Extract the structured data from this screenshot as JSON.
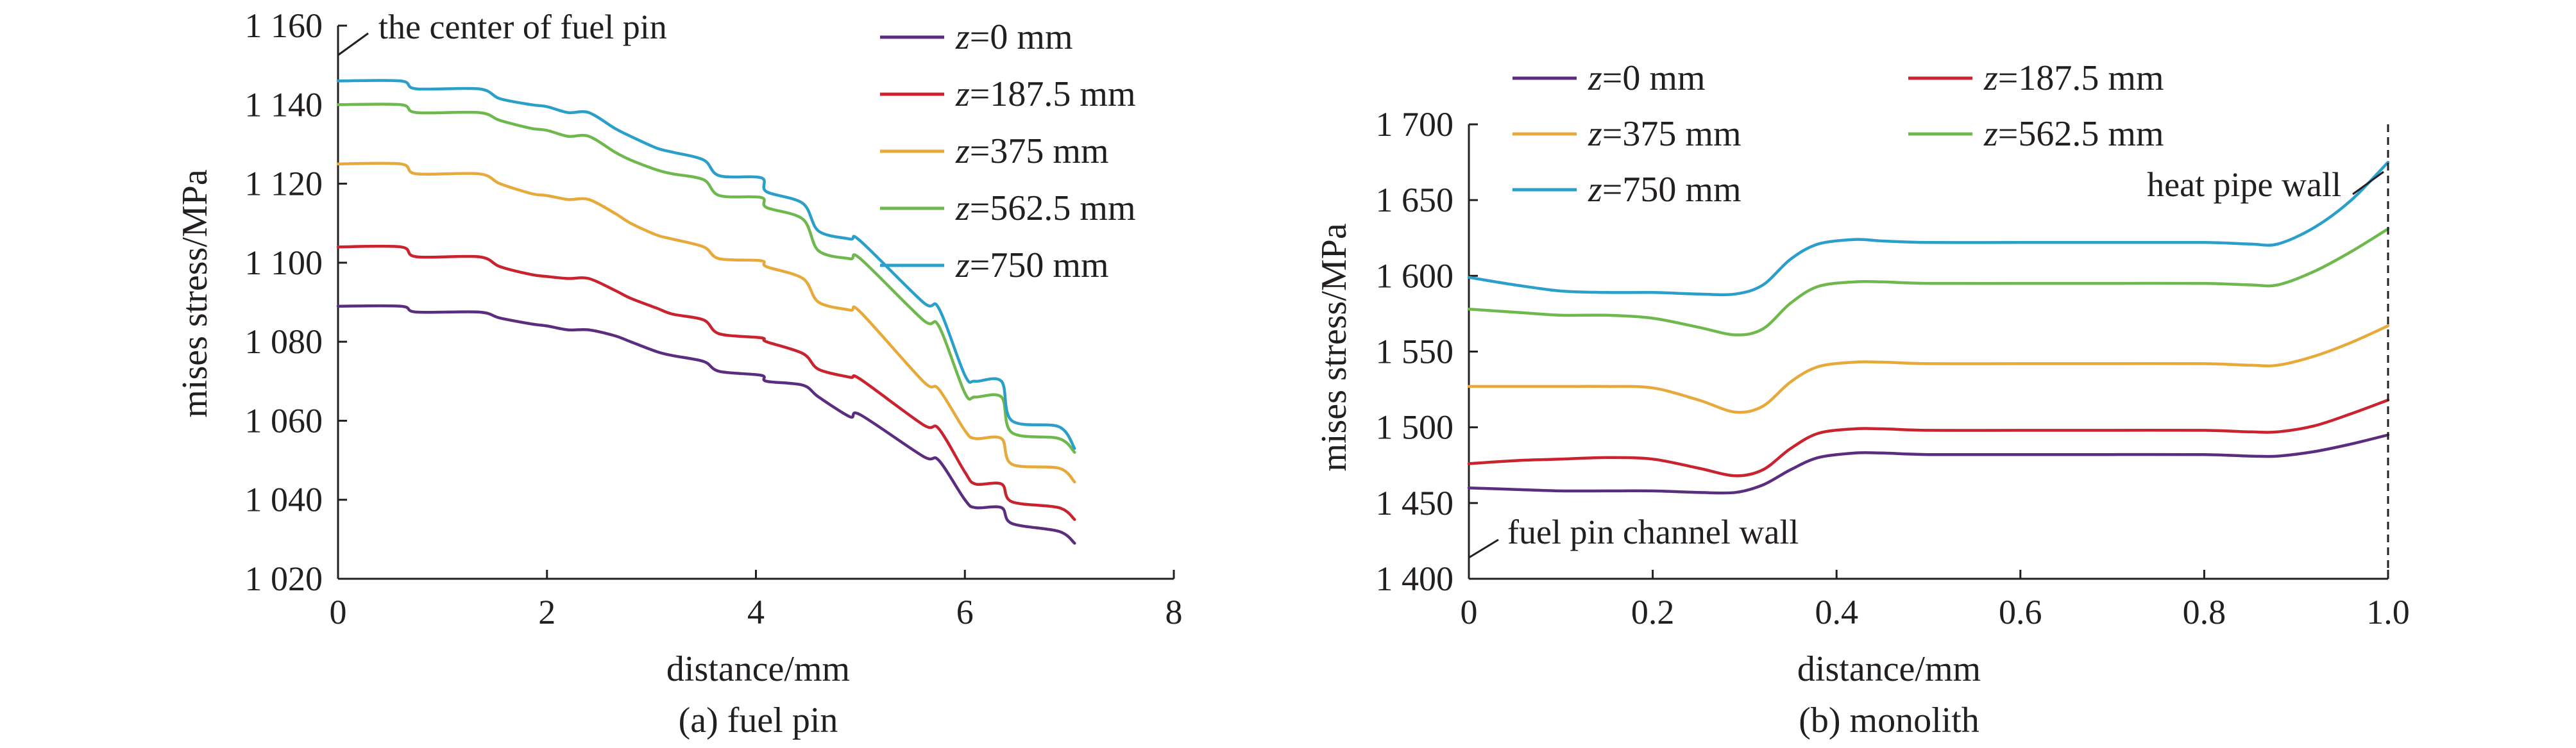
{
  "chart_data": [
    {
      "type": "line",
      "caption": "(a) fuel pin",
      "xlabel": "distance/mm",
      "ylabel": "mises stress/MPa",
      "xlim": [
        0,
        8
      ],
      "ylim": [
        1020,
        1160
      ],
      "xticks": [
        0,
        2,
        4,
        6,
        8
      ],
      "xtick_labels": [
        "0",
        "2",
        "4",
        "6",
        "8"
      ],
      "yticks": [
        1020,
        1040,
        1060,
        1080,
        1100,
        1120,
        1140,
        1160
      ],
      "ytick_labels": [
        "1 020",
        "1 040",
        "1 060",
        "1 080",
        "1 100",
        "1 120",
        "1 140",
        "1 160"
      ],
      "legend_position": "top-right",
      "annotations": [
        {
          "text": "the center of fuel pin",
          "x": 0,
          "y": 1152
        }
      ],
      "series": [
        {
          "name": "z=0 mm",
          "name_italic": "z",
          "name_rest": "=0 mm",
          "color": "#5b2d7f",
          "x": [
            0,
            0.6,
            0.75,
            1.35,
            1.55,
            1.85,
            2.0,
            2.2,
            2.4,
            2.65,
            2.8,
            3.05,
            3.2,
            3.5,
            3.65,
            4.05,
            4.1,
            4.45,
            4.6,
            4.9,
            5.0,
            5.6,
            5.75,
            6.0,
            6.1,
            6.35,
            6.45,
            6.9,
            7.05
          ],
          "y": [
            1089,
            1089,
            1087.5,
            1087.5,
            1086,
            1084.5,
            1084,
            1083,
            1083,
            1081.5,
            1080,
            1077.5,
            1076.5,
            1075,
            1072.5,
            1071.5,
            1070,
            1069,
            1066,
            1061,
            1061.5,
            1051,
            1050,
            1040,
            1038,
            1038,
            1034,
            1032,
            1029
          ]
        },
        {
          "name": "z=187.5 mm",
          "name_italic": "z",
          "name_rest": "=187.5 mm",
          "color": "#c8232f",
          "x": [
            0,
            0.6,
            0.75,
            1.35,
            1.55,
            1.85,
            2.0,
            2.2,
            2.4,
            2.65,
            2.8,
            3.05,
            3.2,
            3.5,
            3.65,
            4.05,
            4.1,
            4.45,
            4.6,
            4.9,
            5.0,
            5.6,
            5.75,
            6.0,
            6.1,
            6.35,
            6.45,
            6.9,
            7.05
          ],
          "y": [
            1104,
            1104,
            1101.5,
            1101.5,
            1099,
            1097,
            1096.5,
            1096,
            1096,
            1093,
            1091,
            1088.5,
            1087,
            1085.5,
            1082,
            1081,
            1080,
            1077,
            1073,
            1071,
            1070.5,
            1059,
            1058,
            1047,
            1044,
            1044,
            1039.5,
            1038,
            1035
          ]
        },
        {
          "name": "z=375 mm",
          "name_italic": "z",
          "name_rest": "=375 mm",
          "color": "#e6a93a",
          "x": [
            0,
            0.6,
            0.75,
            1.35,
            1.55,
            1.85,
            2.0,
            2.2,
            2.4,
            2.65,
            2.8,
            3.05,
            3.2,
            3.5,
            3.65,
            4.05,
            4.1,
            4.45,
            4.6,
            4.9,
            5.0,
            5.6,
            5.75,
            6.0,
            6.1,
            6.35,
            6.45,
            6.9,
            7.05
          ],
          "y": [
            1125,
            1125,
            1122.5,
            1122.5,
            1120,
            1117.5,
            1117,
            1116,
            1116,
            1112.5,
            1110,
            1107,
            1106,
            1104,
            1101,
            1100.5,
            1099,
            1096,
            1090,
            1088,
            1087.5,
            1070,
            1068,
            1057.5,
            1055.5,
            1055.5,
            1049,
            1048,
            1044.5
          ]
        },
        {
          "name": "z=562.5 mm",
          "name_italic": "z",
          "name_rest": "=562.5 mm",
          "color": "#6fb84e",
          "x": [
            0,
            0.6,
            0.75,
            1.35,
            1.55,
            1.85,
            2.0,
            2.2,
            2.4,
            2.65,
            2.8,
            3.05,
            3.2,
            3.5,
            3.65,
            4.05,
            4.1,
            4.45,
            4.6,
            4.9,
            5.0,
            5.6,
            5.75,
            6.0,
            6.1,
            6.35,
            6.45,
            6.9,
            7.05
          ],
          "y": [
            1140,
            1140,
            1138,
            1138,
            1136,
            1134,
            1133.5,
            1132,
            1132,
            1128,
            1126,
            1123.5,
            1122.5,
            1121,
            1117,
            1116.5,
            1114,
            1111,
            1103,
            1101,
            1101,
            1085.5,
            1084,
            1067,
            1066,
            1066,
            1057,
            1055.5,
            1052
          ]
        },
        {
          "name": "z=750 mm",
          "name_italic": "z",
          "name_rest": "=750 mm",
          "color": "#2a9fc9",
          "x": [
            0,
            0.6,
            0.75,
            1.35,
            1.55,
            1.85,
            2.0,
            2.2,
            2.4,
            2.65,
            2.8,
            3.05,
            3.2,
            3.5,
            3.65,
            4.05,
            4.1,
            4.45,
            4.6,
            4.9,
            5.0,
            5.6,
            5.75,
            6.0,
            6.1,
            6.35,
            6.45,
            6.9,
            7.05
          ],
          "y": [
            1146,
            1146,
            1144,
            1144,
            1141.5,
            1140,
            1139.5,
            1138,
            1138,
            1134,
            1132,
            1129,
            1128,
            1126,
            1122,
            1121.5,
            1118,
            1115,
            1108,
            1106,
            1105.5,
            1090,
            1088.5,
            1071.5,
            1070,
            1070,
            1060,
            1058.5,
            1053
          ]
        }
      ]
    },
    {
      "type": "line",
      "caption": "(b) monolith",
      "xlabel": "distance/mm",
      "ylabel": "mises stress/MPa",
      "xlim": [
        0,
        1.0
      ],
      "ylim": [
        1400,
        1700
      ],
      "xticks": [
        0,
        0.2,
        0.4,
        0.6,
        0.8,
        1.0
      ],
      "xtick_labels": [
        "0",
        "0.2",
        "0.4",
        "0.6",
        "0.8",
        "1.0"
      ],
      "yticks": [
        1400,
        1450,
        1500,
        1550,
        1600,
        1650,
        1700
      ],
      "ytick_labels": [
        "1 400",
        "1 450",
        "1 500",
        "1 550",
        "1 600",
        "1 650",
        "1 700"
      ],
      "legend_position": "top",
      "annotations": [
        {
          "text": "heat pipe wall",
          "x": 1.0,
          "y": 1690
        },
        {
          "text": "fuel pin channel wall",
          "x": 0,
          "y": 1418
        }
      ],
      "series": [
        {
          "name": "z=0 mm",
          "name_italic": "z",
          "name_rest": "=0 mm",
          "color": "#5b2d7f",
          "x": [
            0,
            0.05,
            0.1,
            0.15,
            0.2,
            0.25,
            0.29,
            0.32,
            0.35,
            0.38,
            0.42,
            0.45,
            0.5,
            0.6,
            0.7,
            0.8,
            0.85,
            0.88,
            0.92,
            0.96,
            1.0
          ],
          "y": [
            1460,
            1459,
            1458,
            1458,
            1458,
            1457,
            1457,
            1462,
            1472,
            1480,
            1483,
            1483,
            1482,
            1482,
            1482,
            1482,
            1481,
            1481,
            1484,
            1489,
            1495
          ]
        },
        {
          "name": "z=187.5 mm",
          "name_italic": "z",
          "name_rest": "=187.5 mm",
          "color": "#c8232f",
          "x": [
            0,
            0.05,
            0.1,
            0.15,
            0.2,
            0.25,
            0.29,
            0.32,
            0.35,
            0.38,
            0.42,
            0.45,
            0.5,
            0.6,
            0.7,
            0.8,
            0.85,
            0.88,
            0.92,
            0.96,
            1.0
          ],
          "y": [
            1476,
            1478,
            1479,
            1480,
            1479,
            1473,
            1468,
            1472,
            1486,
            1496,
            1499,
            1499,
            1498,
            1498,
            1498,
            1498,
            1497,
            1497,
            1501,
            1509,
            1518
          ]
        },
        {
          "name": "z=375 mm",
          "name_italic": "z",
          "name_rest": "=375 mm",
          "color": "#e6a93a",
          "x": [
            0,
            0.05,
            0.1,
            0.15,
            0.2,
            0.25,
            0.29,
            0.32,
            0.35,
            0.38,
            0.42,
            0.45,
            0.5,
            0.6,
            0.7,
            0.8,
            0.85,
            0.88,
            0.92,
            0.96,
            1.0
          ],
          "y": [
            1527,
            1527,
            1527,
            1527,
            1526,
            1518,
            1510,
            1514,
            1530,
            1540,
            1543,
            1543,
            1542,
            1542,
            1542,
            1542,
            1541,
            1541,
            1547,
            1556,
            1567
          ]
        },
        {
          "name": "z=562.5 mm",
          "name_italic": "z",
          "name_rest": "=562.5 mm",
          "color": "#6fb84e",
          "x": [
            0,
            0.05,
            0.1,
            0.15,
            0.2,
            0.25,
            0.29,
            0.32,
            0.35,
            0.38,
            0.42,
            0.45,
            0.5,
            0.6,
            0.7,
            0.8,
            0.85,
            0.88,
            0.92,
            0.96,
            1.0
          ],
          "y": [
            1578,
            1576,
            1574,
            1574,
            1572,
            1566,
            1561,
            1565,
            1582,
            1593,
            1596,
            1596,
            1595,
            1595,
            1595,
            1595,
            1594,
            1594,
            1603,
            1616,
            1631
          ]
        },
        {
          "name": "z=750 mm",
          "name_italic": "z",
          "name_rest": "=750 mm",
          "color": "#2a9fc9",
          "x": [
            0,
            0.05,
            0.1,
            0.15,
            0.2,
            0.25,
            0.29,
            0.32,
            0.35,
            0.38,
            0.42,
            0.45,
            0.5,
            0.6,
            0.7,
            0.8,
            0.85,
            0.88,
            0.92,
            0.96,
            1.0
          ],
          "y": [
            1599,
            1594,
            1590,
            1589,
            1589,
            1588,
            1588,
            1594,
            1611,
            1621,
            1624,
            1623,
            1622,
            1622,
            1622,
            1622,
            1621,
            1621,
            1632,
            1650,
            1675
          ]
        }
      ]
    }
  ]
}
